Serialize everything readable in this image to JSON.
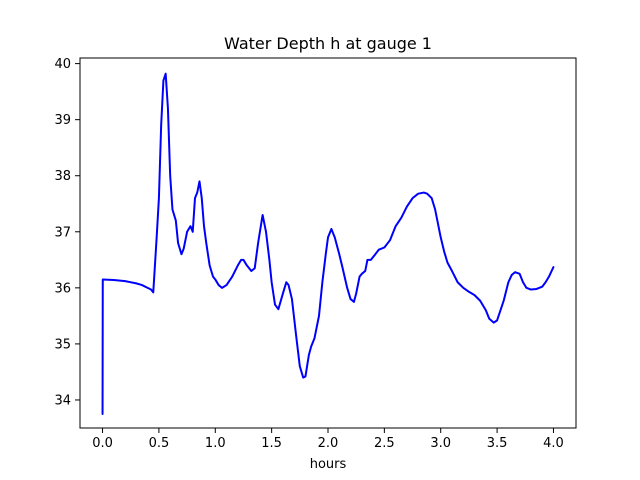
{
  "chart_data": {
    "type": "line",
    "title": "Water Depth h at gauge 1",
    "xlabel": "hours",
    "ylabel": "",
    "xlim": [
      -0.2,
      4.2
    ],
    "ylim": [
      33.5,
      40.1
    ],
    "xticks": [
      0.0,
      0.5,
      1.0,
      1.5,
      2.0,
      2.5,
      3.0,
      3.5,
      4.0
    ],
    "xtick_labels": [
      "0.0",
      "0.5",
      "1.0",
      "1.5",
      "2.0",
      "2.5",
      "3.0",
      "3.5",
      "4.0"
    ],
    "yticks": [
      34,
      35,
      36,
      37,
      38,
      39,
      40
    ],
    "ytick_labels": [
      "34",
      "35",
      "36",
      "37",
      "38",
      "39",
      "40"
    ],
    "grid": false,
    "series": [
      {
        "color": "#0000ff",
        "x": [
          0.0,
          0.002,
          0.1,
          0.2,
          0.3,
          0.35,
          0.4,
          0.43,
          0.45,
          0.48,
          0.5,
          0.52,
          0.54,
          0.56,
          0.58,
          0.6,
          0.62,
          0.65,
          0.67,
          0.7,
          0.72,
          0.75,
          0.78,
          0.8,
          0.82,
          0.84,
          0.86,
          0.88,
          0.9,
          0.92,
          0.95,
          0.98,
          1.0,
          1.03,
          1.06,
          1.1,
          1.15,
          1.2,
          1.23,
          1.25,
          1.28,
          1.32,
          1.35,
          1.38,
          1.42,
          1.45,
          1.48,
          1.5,
          1.53,
          1.56,
          1.6,
          1.63,
          1.65,
          1.68,
          1.72,
          1.75,
          1.78,
          1.8,
          1.83,
          1.85,
          1.88,
          1.92,
          1.95,
          1.98,
          2.0,
          2.03,
          2.06,
          2.1,
          2.13,
          2.17,
          2.2,
          2.23,
          2.25,
          2.28,
          2.3,
          2.33,
          2.35,
          2.38,
          2.42,
          2.45,
          2.5,
          2.55,
          2.6,
          2.65,
          2.7,
          2.75,
          2.8,
          2.85,
          2.88,
          2.92,
          2.95,
          3.0,
          3.03,
          3.06,
          3.1,
          3.15,
          3.2,
          3.25,
          3.3,
          3.35,
          3.4,
          3.43,
          3.47,
          3.5,
          3.53,
          3.56,
          3.6,
          3.63,
          3.66,
          3.7,
          3.73,
          3.76,
          3.8,
          3.85,
          3.9,
          3.93,
          3.96,
          4.0
        ],
        "y": [
          33.75,
          36.15,
          36.14,
          36.12,
          36.08,
          36.05,
          36.0,
          35.97,
          35.92,
          36.9,
          37.6,
          38.9,
          39.7,
          39.82,
          39.2,
          38.0,
          37.4,
          37.2,
          36.8,
          36.6,
          36.7,
          37.0,
          37.1,
          37.0,
          37.6,
          37.7,
          37.9,
          37.6,
          37.1,
          36.8,
          36.4,
          36.2,
          36.15,
          36.05,
          36.0,
          36.05,
          36.2,
          36.4,
          36.5,
          36.5,
          36.4,
          36.3,
          36.35,
          36.8,
          37.3,
          37.0,
          36.5,
          36.1,
          35.7,
          35.62,
          35.9,
          36.1,
          36.05,
          35.8,
          35.1,
          34.6,
          34.4,
          34.42,
          34.8,
          34.95,
          35.1,
          35.5,
          36.1,
          36.6,
          36.9,
          37.05,
          36.9,
          36.6,
          36.35,
          36.0,
          35.8,
          35.75,
          35.9,
          36.2,
          36.25,
          36.3,
          36.5,
          36.5,
          36.6,
          36.68,
          36.72,
          36.85,
          37.1,
          37.25,
          37.45,
          37.6,
          37.68,
          37.7,
          37.68,
          37.6,
          37.4,
          36.9,
          36.65,
          36.45,
          36.3,
          36.1,
          36.0,
          35.93,
          35.87,
          35.77,
          35.6,
          35.45,
          35.38,
          35.42,
          35.6,
          35.78,
          36.1,
          36.23,
          36.28,
          36.25,
          36.1,
          36.0,
          35.97,
          35.98,
          36.02,
          36.1,
          36.2,
          36.37
        ]
      }
    ]
  }
}
